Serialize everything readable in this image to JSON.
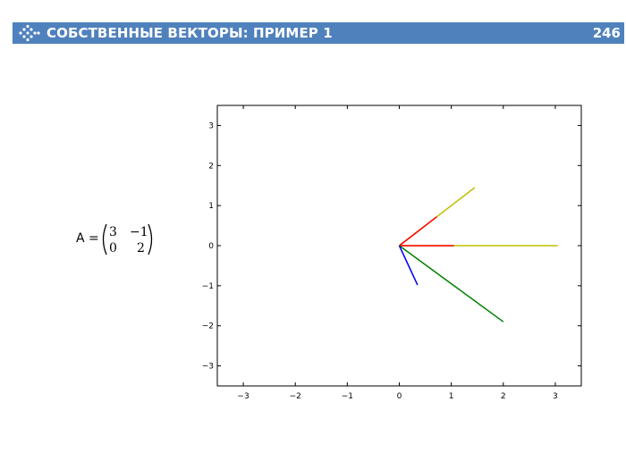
{
  "header": {
    "title": "СОБСТВЕННЫЕ ВЕКТОРЫ: ПРИМЕР 1",
    "page_number": "246",
    "icon": "arrows-logo-icon",
    "bar_color": "#4f81bd"
  },
  "matrix": {
    "label": "A =",
    "rows": [
      [
        "3",
        "−1"
      ],
      [
        "0",
        "2"
      ]
    ]
  },
  "chart_data": {
    "type": "line",
    "xlim": [
      -3.5,
      3.5
    ],
    "ylim": [
      -3.5,
      3.5
    ],
    "xticks": [
      -3,
      -2,
      -1,
      0,
      1,
      2,
      3
    ],
    "yticks": [
      -3,
      -2,
      -1,
      0,
      1,
      2,
      3
    ],
    "xtick_labels": [
      "−3",
      "−2",
      "−1",
      "0",
      "1",
      "2",
      "3"
    ],
    "ytick_labels": [
      "−3",
      "−2",
      "−1",
      "0",
      "1",
      "2",
      "3"
    ],
    "grid": false,
    "series": [
      {
        "color": "#bfbf00",
        "x": [
          0,
          3.05
        ],
        "y": [
          0,
          0
        ]
      },
      {
        "color": "#ff0000",
        "x": [
          0,
          1.05
        ],
        "y": [
          0,
          0
        ]
      },
      {
        "color": "#bfbf00",
        "x": [
          0,
          1.45
        ],
        "y": [
          0,
          1.45
        ]
      },
      {
        "color": "#ff0000",
        "x": [
          0,
          0.72
        ],
        "y": [
          0,
          0.72
        ]
      },
      {
        "color": "#008000",
        "x": [
          0,
          2.0
        ],
        "y": [
          0,
          -1.9
        ]
      },
      {
        "color": "#0000ff",
        "x": [
          0,
          0.35
        ],
        "y": [
          0,
          -0.98
        ]
      }
    ]
  }
}
